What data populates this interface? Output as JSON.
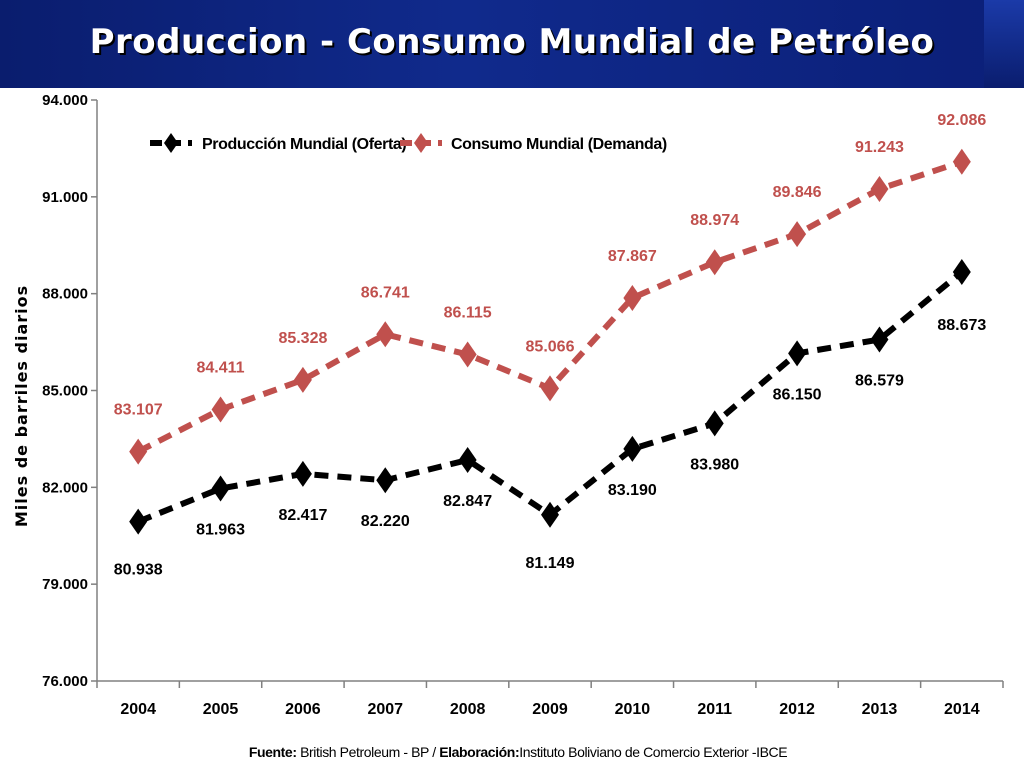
{
  "title": "Produccion - Consumo Mundial de Petróleo",
  "chart_data": {
    "type": "line",
    "categories": [
      "2004",
      "2005",
      "2006",
      "2007",
      "2008",
      "2009",
      "2010",
      "2011",
      "2012",
      "2013",
      "2014"
    ],
    "ylabel": "Miles de barriles diarios",
    "ylim": [
      76000,
      94000
    ],
    "yticks": [
      76000,
      79000,
      82000,
      85000,
      88000,
      91000,
      94000
    ],
    "ytick_labels": [
      "76.000",
      "79.000",
      "82.000",
      "85.000",
      "88.000",
      "91.000",
      "94.000"
    ],
    "legend_position": "top-left",
    "grid": false,
    "series": [
      {
        "name": "Producción Mundial (Oferta)",
        "color": "#000000",
        "values": [
          80938,
          81963,
          82417,
          82220,
          82847,
          81149,
          83190,
          83980,
          86150,
          86579,
          88673
        ],
        "labels": [
          "80.938",
          "81.963",
          "82.417",
          "82.220",
          "82.847",
          "81.149",
          "83.190",
          "83.980",
          "86.150",
          "86.579",
          "88.673"
        ]
      },
      {
        "name": "Consumo Mundial (Demanda)",
        "color": "#c0504d",
        "values": [
          83107,
          84411,
          85328,
          86741,
          86115,
          85066,
          87867,
          88974,
          89846,
          91243,
          92086
        ],
        "labels": [
          "83.107",
          "84.411",
          "85.328",
          "86.741",
          "86.115",
          "85.066",
          "87.867",
          "88.974",
          "89.846",
          "91.243",
          "92.086"
        ]
      }
    ],
    "source_label": "Fuente:",
    "source_text": " British Petroleum - BP / ",
    "elaboration_label": "Elaboración:",
    "elaboration_text": "Instituto Boliviano de Comercio Exterior -IBCE"
  }
}
